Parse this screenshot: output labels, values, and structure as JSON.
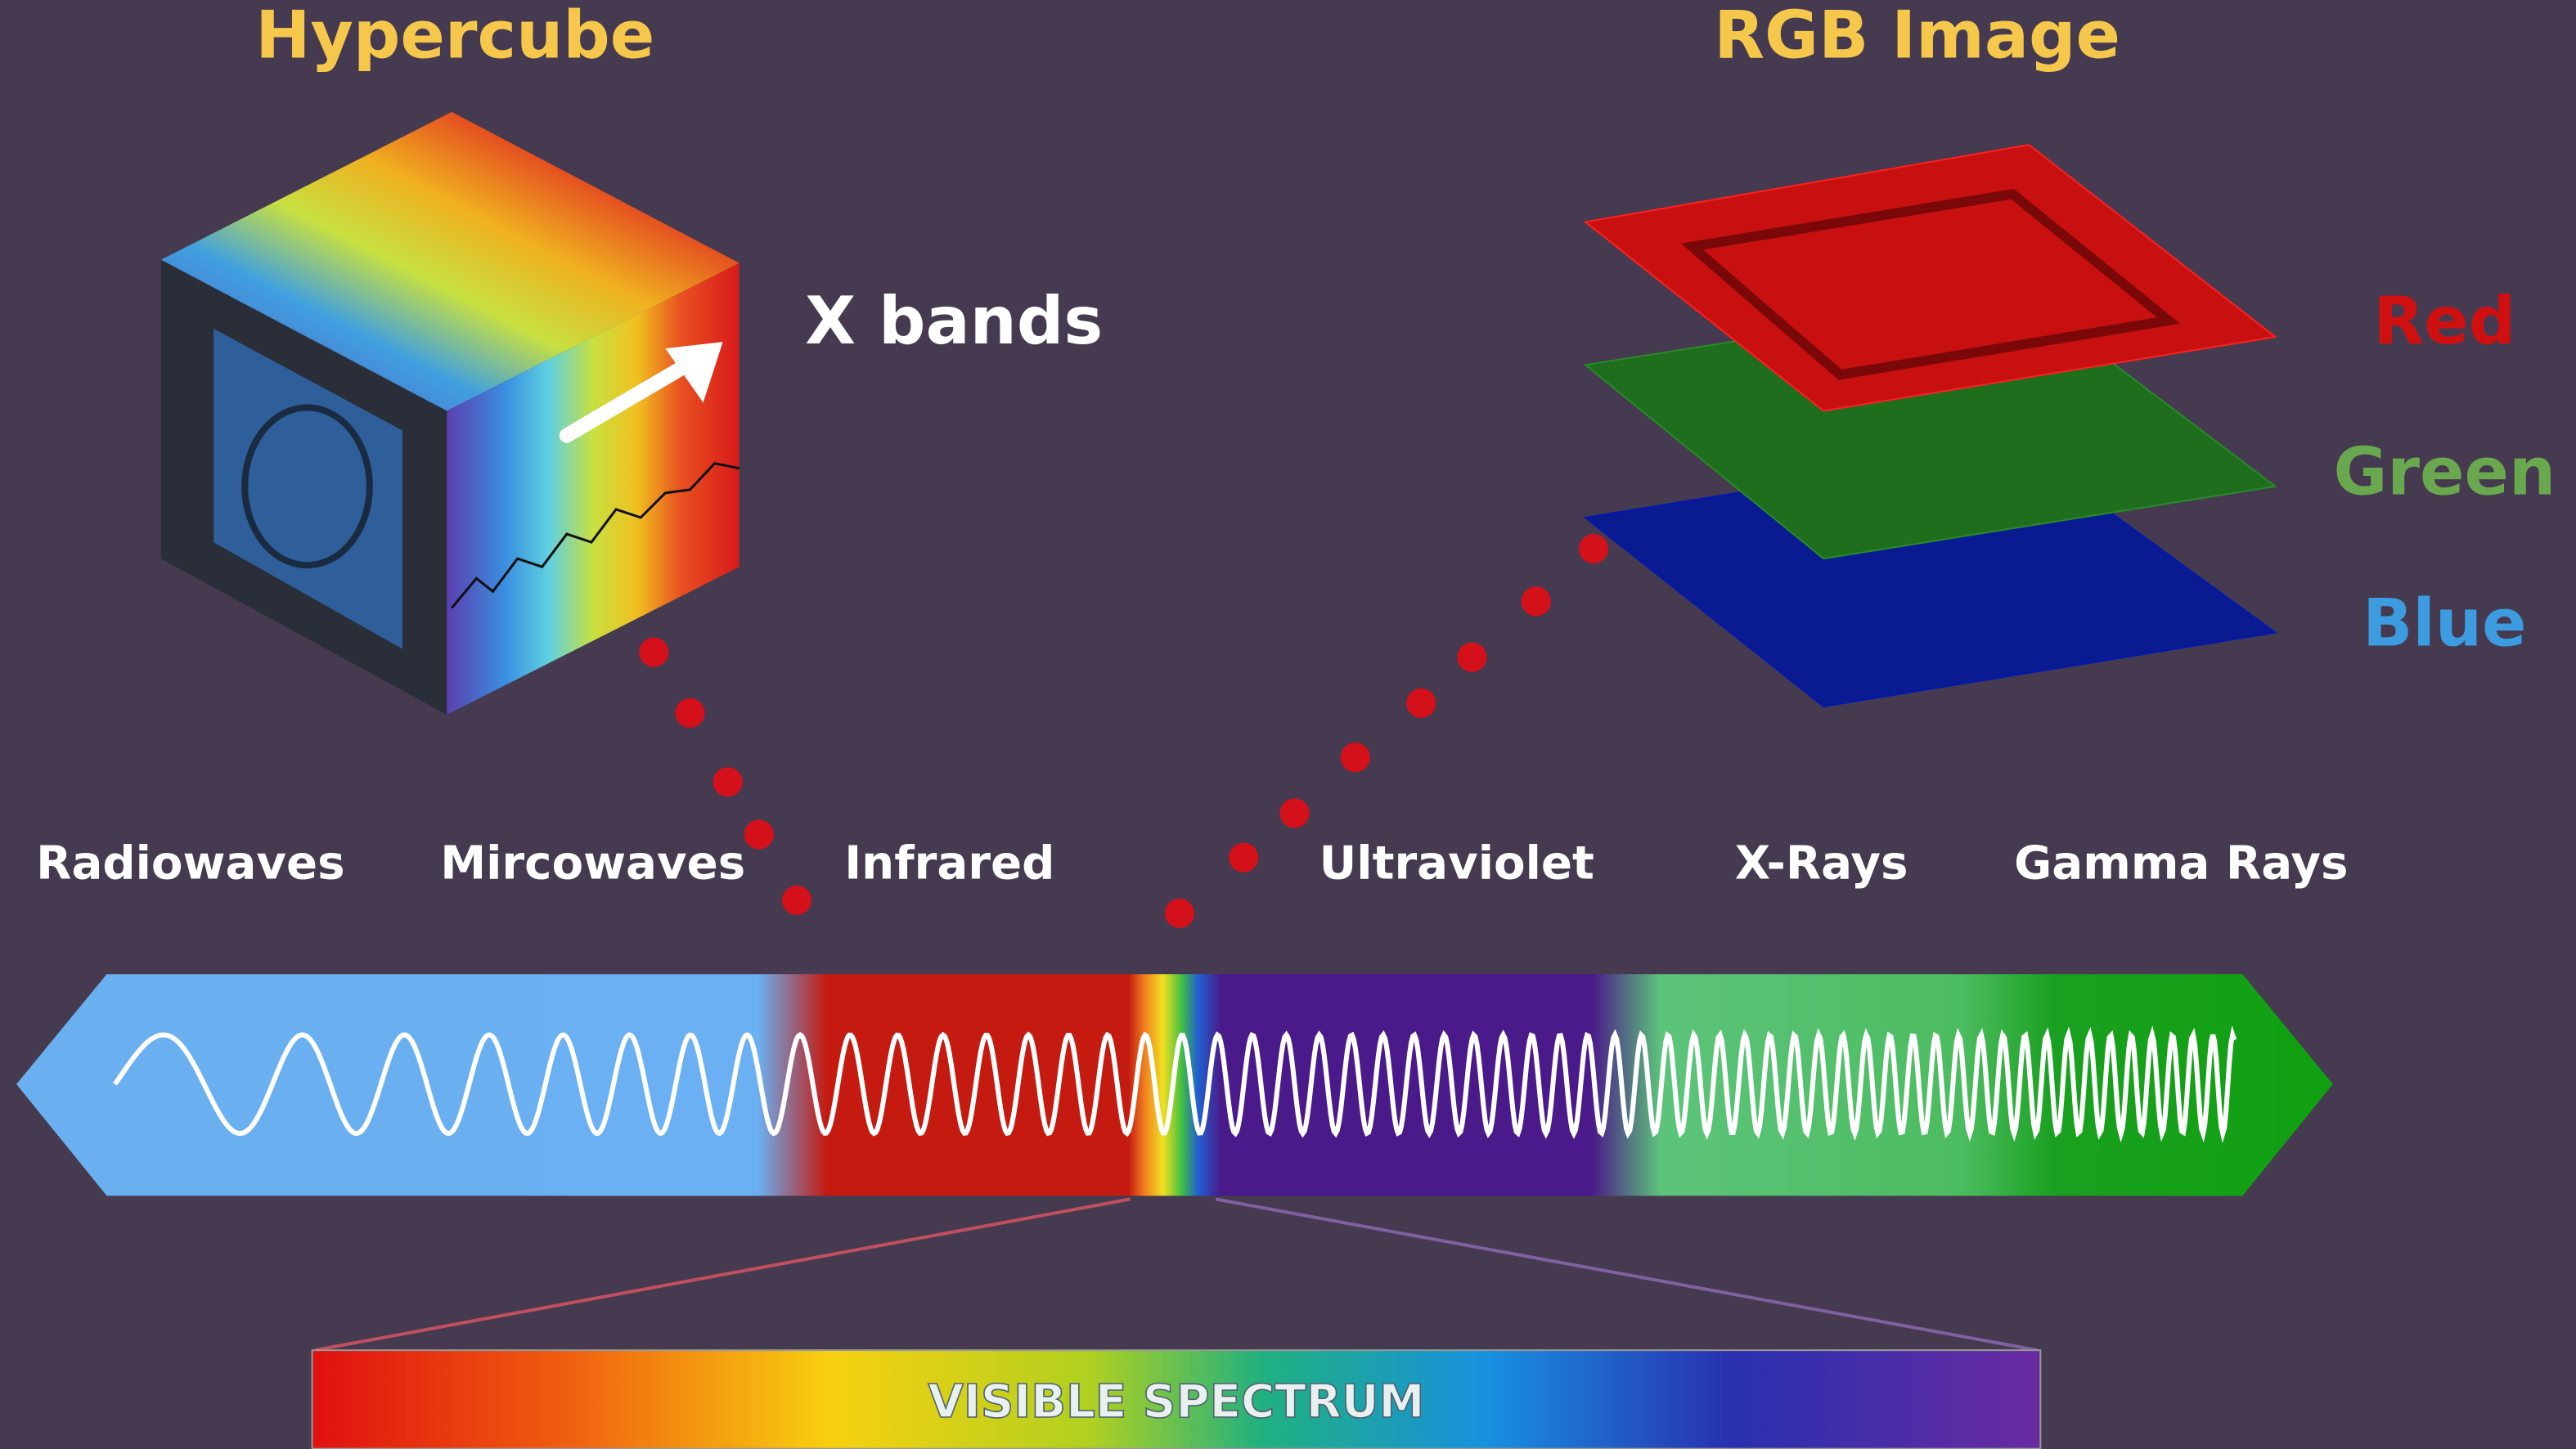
{
  "titles": {
    "hypercube": "Hypercube",
    "rgb_image": "RGB Image"
  },
  "x_bands": "X bands",
  "channels": [
    "Red",
    "Green",
    "Blue"
  ],
  "spectrum": [
    "Radiowaves",
    "Mircowaves",
    "Infrared",
    "Ultraviolet",
    "X-Rays",
    "Gamma Rays"
  ],
  "visible_spectrum": "VISIBLE SPECTRUM"
}
